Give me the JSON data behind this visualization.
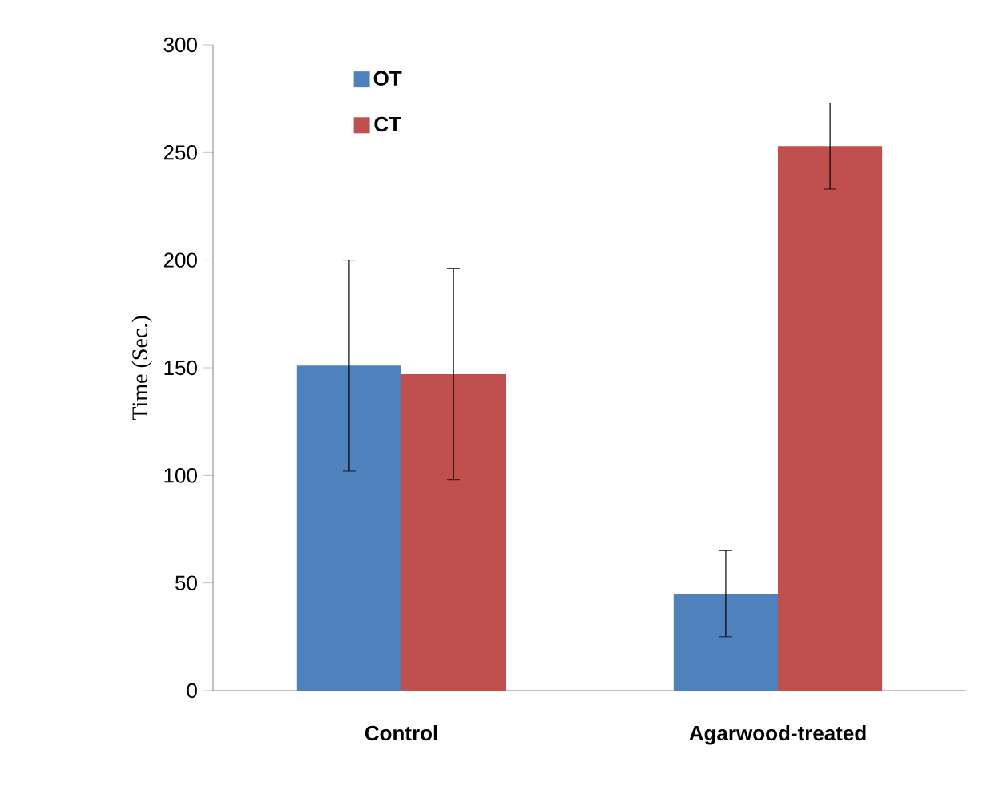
{
  "chart_data": {
    "type": "bar",
    "ylabel": "Time (Sec.)",
    "categories": [
      "Control",
      "Agarwood-treated"
    ],
    "series": [
      {
        "name": "OT",
        "color": "#4f81bd",
        "values": [
          151,
          45
        ],
        "errors": [
          49,
          20
        ]
      },
      {
        "name": "CT",
        "color": "#c0504d",
        "values": [
          147,
          253
        ],
        "errors": [
          49,
          20
        ]
      }
    ],
    "ylim": [
      0,
      300
    ],
    "yticks": [
      0,
      50,
      100,
      150,
      200,
      250,
      300
    ],
    "grid": false,
    "legend": "top left"
  }
}
